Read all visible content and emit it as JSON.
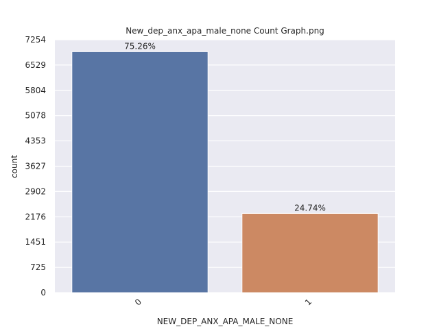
{
  "chart_data": {
    "type": "bar",
    "title": "New_dep_anx_apa_male_none Count Graph.png",
    "xlabel": "NEW_DEP_ANX_APA_MALE_NONE",
    "ylabel": "count",
    "categories": [
      "0",
      "1"
    ],
    "values": [
      6913,
      2273
    ],
    "data_labels": [
      "75.26%",
      "24.74%"
    ],
    "colors": [
      "#5875a4",
      "#cc8963"
    ],
    "yticks": [
      "0",
      "725",
      "1451",
      "2176",
      "2902",
      "3627",
      "4353",
      "5078",
      "5804",
      "6529",
      "7254"
    ],
    "ylim": [
      0,
      7254
    ],
    "grid": true,
    "background": "#eaeaf2"
  }
}
